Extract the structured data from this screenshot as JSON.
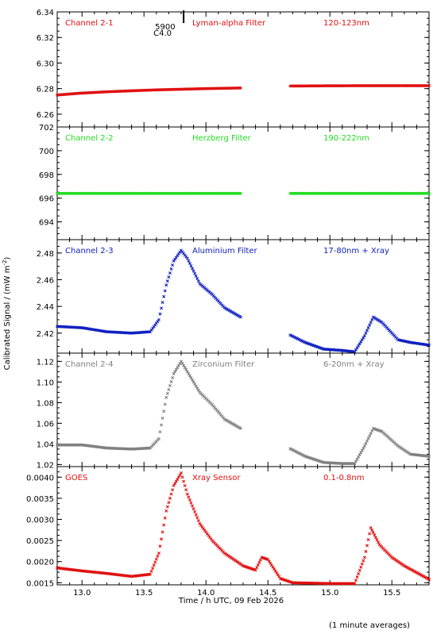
{
  "figure": {
    "ylabel": "Calibrated Signal / (mW m",
    "ylabel_sup": "-2",
    "ylabel_end": ")",
    "xlabel": "Time / h UTC, 09 Feb 2026",
    "footnote": "(1 minute averages)",
    "event_marker": {
      "top": "5900",
      "bottom": "C4.0",
      "x": 13.82
    }
  },
  "colors": {
    "red": "#e01010",
    "green": "#22dd22",
    "blue": "#1020c0",
    "gray": "#808080",
    "axis": "#000000"
  },
  "chart_data": [
    {
      "type": "scatter",
      "panel": "ch2-1",
      "channel": "Channel 2-1",
      "filter": "Lyman-alpha Filter",
      "band": "120-123nm",
      "color": "#e01010",
      "xlim": [
        12.8,
        15.8
      ],
      "ylim": [
        6.25,
        6.34
      ],
      "yticks": [
        "6.26",
        "6.28",
        "6.30",
        "6.32",
        "6.34"
      ],
      "gap": [
        14.28,
        14.67
      ],
      "series": [
        {
          "x": [
            12.8,
            13.0,
            13.2,
            13.4,
            13.6,
            13.8,
            14.0,
            14.28,
            14.67,
            15.0,
            15.4,
            15.8
          ],
          "y": [
            6.275,
            6.2765,
            6.2775,
            6.2783,
            6.279,
            6.2795,
            6.28,
            6.2805,
            6.282,
            6.2822,
            6.2823,
            6.2823
          ]
        }
      ]
    },
    {
      "type": "scatter",
      "panel": "ch2-2",
      "channel": "Channel 2-2",
      "filter": "Herzberg Filter",
      "band": "190-222nm",
      "color": "#22dd22",
      "xlim": [
        12.8,
        15.8
      ],
      "ylim": [
        692.5,
        702
      ],
      "yticks": [
        "694",
        "696",
        "698",
        "700",
        "702"
      ],
      "gap": [
        14.28,
        14.67
      ],
      "series": [
        {
          "x": [
            12.8,
            14.28,
            14.67,
            15.8
          ],
          "y": [
            696.4,
            696.4,
            696.4,
            696.4
          ]
        }
      ]
    },
    {
      "type": "scatter",
      "panel": "ch2-3",
      "channel": "Channel 2-3",
      "filter": "Aluminium Filter",
      "band": "17-80nm + Xray",
      "color": "#1020c0",
      "xlim": [
        12.8,
        15.8
      ],
      "ylim": [
        2.405,
        2.49
      ],
      "yticks": [
        "2.42",
        "2.44",
        "2.46",
        "2.48"
      ],
      "gap": [
        14.28,
        14.67
      ],
      "series": [
        {
          "x": [
            12.8,
            13.0,
            13.2,
            13.4,
            13.55,
            13.62,
            13.68,
            13.74,
            13.8,
            13.85,
            13.95,
            14.05,
            14.15,
            14.28,
            14.67,
            14.8,
            14.95,
            15.1,
            15.2,
            15.28,
            15.35,
            15.42,
            15.55,
            15.65,
            15.8
          ],
          "y": [
            2.425,
            2.424,
            2.421,
            2.42,
            2.421,
            2.43,
            2.456,
            2.474,
            2.482,
            2.476,
            2.457,
            2.449,
            2.439,
            2.432,
            2.419,
            2.413,
            2.408,
            2.407,
            2.406,
            2.418,
            2.432,
            2.428,
            2.415,
            2.413,
            2.411
          ]
        }
      ]
    },
    {
      "type": "scatter",
      "panel": "ch2-4",
      "channel": "Channel 2-4",
      "filter": "Zirconium Filter",
      "band": "6-20nm + Xray",
      "color": "#808080",
      "xlim": [
        12.8,
        15.8
      ],
      "ylim": [
        1.018,
        1.128
      ],
      "yticks": [
        "1.02",
        "1.04",
        "1.06",
        "1.08",
        "1.10",
        "1.12"
      ],
      "gap": [
        14.28,
        14.67
      ],
      "series": [
        {
          "x": [
            12.8,
            13.0,
            13.2,
            13.4,
            13.55,
            13.62,
            13.68,
            13.74,
            13.8,
            13.85,
            13.95,
            14.05,
            14.15,
            14.28,
            14.67,
            14.8,
            14.95,
            15.1,
            15.2,
            15.28,
            15.35,
            15.42,
            15.55,
            15.65,
            15.8
          ],
          "y": [
            1.039,
            1.039,
            1.036,
            1.035,
            1.036,
            1.045,
            1.085,
            1.108,
            1.12,
            1.11,
            1.09,
            1.078,
            1.064,
            1.055,
            1.036,
            1.028,
            1.022,
            1.021,
            1.021,
            1.038,
            1.055,
            1.052,
            1.038,
            1.03,
            1.028
          ]
        }
      ]
    },
    {
      "type": "scatter",
      "panel": "goes",
      "channel": "GOES",
      "filter": "Xray Sensor",
      "band": "0.1-0.8nm",
      "color": "#e01010",
      "xlim": [
        12.8,
        15.8
      ],
      "ylim": [
        0.00145,
        0.00425
      ],
      "yticks": [
        "0.0015",
        "0.0020",
        "0.0025",
        "0.0030",
        "0.0035",
        "0.0040"
      ],
      "xticks": [
        "13.0",
        "13.5",
        "14.0",
        "14.5",
        "15.0",
        "15.5"
      ],
      "series": [
        {
          "x": [
            12.8,
            13.0,
            13.2,
            13.4,
            13.55,
            13.62,
            13.68,
            13.74,
            13.8,
            13.85,
            13.95,
            14.05,
            14.15,
            14.3,
            14.4,
            14.45,
            14.5,
            14.6,
            14.7,
            15.0,
            15.2,
            15.28,
            15.33,
            15.4,
            15.5,
            15.6,
            15.8
          ],
          "y": [
            0.00185,
            0.00178,
            0.00172,
            0.00165,
            0.0017,
            0.0022,
            0.0032,
            0.0038,
            0.0041,
            0.0036,
            0.0029,
            0.0025,
            0.0022,
            0.0019,
            0.0018,
            0.0021,
            0.00205,
            0.0016,
            0.0015,
            0.00148,
            0.00148,
            0.0021,
            0.0028,
            0.0024,
            0.0021,
            0.0019,
            0.00158
          ]
        }
      ]
    }
  ]
}
